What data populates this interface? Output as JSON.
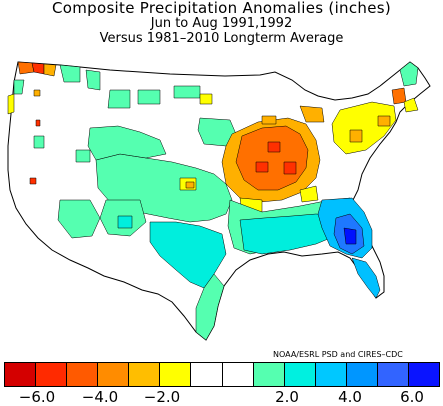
{
  "title": {
    "line1": "Composite Precipitation Anomalies (inches)",
    "line2": "Jun to Aug  1991,1992",
    "line3": "Versus 1981–2010 Longterm Average"
  },
  "credit": "NOAA/ESRL PSD and CIRES–CDC",
  "colorbar": {
    "colors": [
      "#d40000",
      "#ff2a00",
      "#ff5a00",
      "#ff8c00",
      "#ffbe00",
      "#ffff00",
      "#ffffff",
      "#ffffff",
      "#55ffb0",
      "#00f0e0",
      "#00c8ff",
      "#0096ff",
      "#3264ff",
      "#0a14ff"
    ],
    "tick_labels": [
      "−6.0",
      "−4.0",
      "−2.0",
      "2.0",
      "4.0",
      "6.0"
    ]
  },
  "map": {
    "anomaly_colors": {
      "dry_strong": "#ff7000",
      "dry_moderate": "#ffb000",
      "dry_light": "#ffff00",
      "dry_severe": "#ff3000",
      "wet_light": "#55ffb0",
      "wet_moderate": "#00eedd",
      "wet_strong": "#00c0ff",
      "wet_heavy": "#1e78ff",
      "wet_extreme": "#0010ff"
    }
  }
}
